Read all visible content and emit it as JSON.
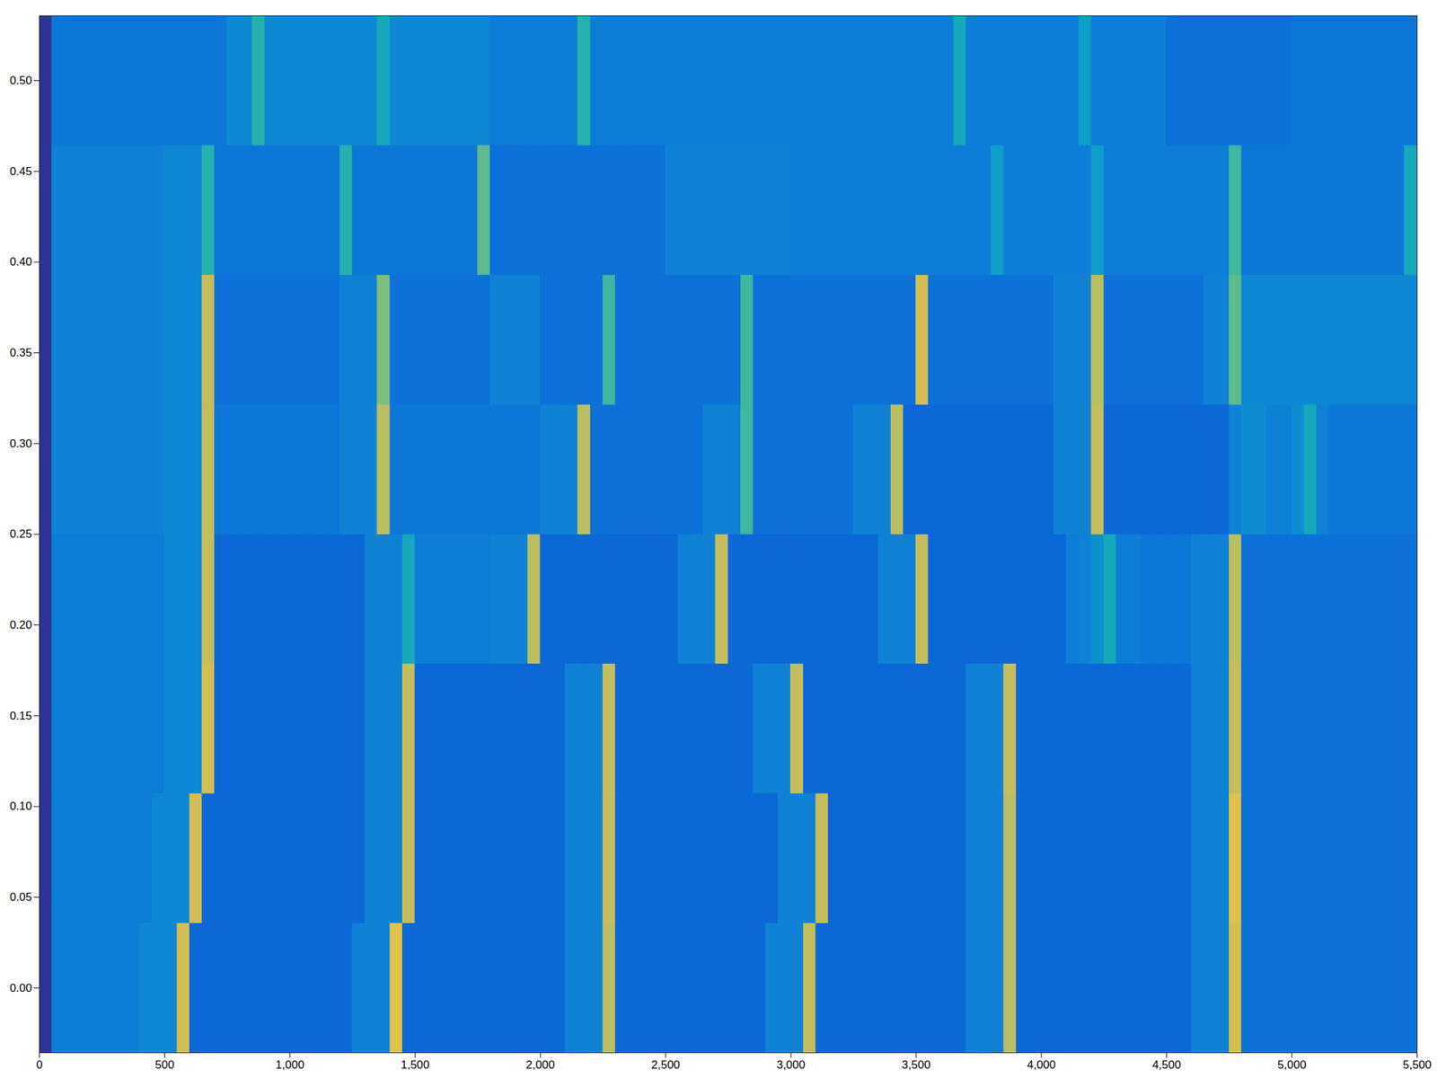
{
  "chart_data": {
    "type": "heatmap",
    "xlim": [
      0,
      5500
    ],
    "ylim": [
      -0.0357,
      0.5357
    ],
    "xticks": [
      0,
      500,
      1000,
      1500,
      2000,
      2500,
      3000,
      3500,
      4000,
      4500,
      5000,
      5500
    ],
    "yticks": [
      0,
      0.05,
      0.1,
      0.15,
      0.2,
      0.25,
      0.3,
      0.35,
      0.4,
      0.45,
      0.5
    ],
    "color_range": [
      0,
      1
    ],
    "x_edges": [
      0,
      50,
      100,
      150,
      200,
      250,
      300,
      350,
      400,
      450,
      500,
      550,
      600,
      650,
      700,
      750,
      800,
      850,
      900,
      950,
      1000,
      1050,
      1100,
      1150,
      1200,
      1250,
      1300,
      1350,
      1400,
      1450,
      1500,
      1550,
      1600,
      1650,
      1700,
      1750,
      1800,
      1850,
      1900,
      1950,
      2000,
      2050,
      2100,
      2150,
      2200,
      2250,
      2300,
      2350,
      2400,
      2450,
      2500,
      2550,
      2600,
      2650,
      2700,
      2750,
      2800,
      2850,
      2900,
      2950,
      3000,
      3050,
      3100,
      3150,
      3200,
      3250,
      3300,
      3350,
      3400,
      3450,
      3500,
      3550,
      3600,
      3650,
      3700,
      3750,
      3800,
      3850,
      3900,
      3950,
      4000,
      4050,
      4100,
      4150,
      4200,
      4250,
      4300,
      4350,
      4400,
      4450,
      4500,
      4550,
      4600,
      4650,
      4700,
      4750,
      4800,
      4850,
      4900,
      4950,
      5000,
      5050,
      5100,
      5150,
      5200,
      5250,
      5300,
      5350,
      5400,
      5450,
      5500
    ],
    "y_edges": [
      -0.0357,
      0.0357,
      0.1071,
      0.1786,
      0.25,
      0.3214,
      0.3929,
      0.4643,
      0.5357
    ],
    "values": [
      [
        0.02,
        0.22,
        0.22,
        0.22,
        0.22,
        0.22,
        0.22,
        0.22,
        0.26,
        0.26,
        0.26,
        0.75,
        0.15,
        0.15,
        0.15,
        0.15,
        0.15,
        0.15,
        0.15,
        0.15,
        0.15,
        0.15,
        0.15,
        0.15,
        0.15,
        0.24,
        0.24,
        0.24,
        0.78,
        0.15,
        0.15,
        0.15,
        0.15,
        0.15,
        0.15,
        0.15,
        0.15,
        0.15,
        0.15,
        0.15,
        0.15,
        0.15,
        0.24,
        0.24,
        0.24,
        0.7,
        0.15,
        0.15,
        0.15,
        0.15,
        0.15,
        0.15,
        0.15,
        0.15,
        0.15,
        0.15,
        0.15,
        0.15,
        0.24,
        0.24,
        0.24,
        0.72,
        0.15,
        0.15,
        0.15,
        0.15,
        0.15,
        0.15,
        0.15,
        0.15,
        0.15,
        0.15,
        0.15,
        0.15,
        0.24,
        0.24,
        0.24,
        0.7,
        0.15,
        0.15,
        0.15,
        0.15,
        0.15,
        0.15,
        0.15,
        0.15,
        0.15,
        0.15,
        0.15,
        0.15,
        0.15,
        0.15,
        0.24,
        0.24,
        0.24,
        0.75,
        0.18,
        0.18,
        0.18,
        0.18,
        0.18,
        0.18,
        0.18,
        0.18,
        0.18,
        0.18,
        0.18,
        0.18,
        0.18,
        0.18
      ],
      [
        0.02,
        0.22,
        0.22,
        0.22,
        0.22,
        0.22,
        0.22,
        0.22,
        0.22,
        0.26,
        0.26,
        0.26,
        0.75,
        0.15,
        0.15,
        0.15,
        0.15,
        0.15,
        0.15,
        0.15,
        0.15,
        0.15,
        0.15,
        0.15,
        0.15,
        0.15,
        0.24,
        0.24,
        0.24,
        0.72,
        0.15,
        0.15,
        0.15,
        0.15,
        0.15,
        0.15,
        0.15,
        0.15,
        0.15,
        0.15,
        0.15,
        0.15,
        0.24,
        0.24,
        0.24,
        0.72,
        0.15,
        0.15,
        0.15,
        0.15,
        0.15,
        0.15,
        0.15,
        0.15,
        0.15,
        0.15,
        0.15,
        0.15,
        0.15,
        0.24,
        0.24,
        0.24,
        0.72,
        0.15,
        0.15,
        0.15,
        0.15,
        0.15,
        0.15,
        0.15,
        0.15,
        0.15,
        0.15,
        0.15,
        0.24,
        0.24,
        0.24,
        0.7,
        0.15,
        0.15,
        0.15,
        0.15,
        0.15,
        0.15,
        0.15,
        0.15,
        0.15,
        0.15,
        0.15,
        0.15,
        0.15,
        0.15,
        0.24,
        0.24,
        0.24,
        0.78,
        0.18,
        0.18,
        0.18,
        0.18,
        0.18,
        0.18,
        0.18,
        0.18,
        0.18,
        0.18,
        0.18,
        0.18,
        0.18,
        0.18
      ],
      [
        0.02,
        0.22,
        0.22,
        0.22,
        0.22,
        0.22,
        0.22,
        0.22,
        0.22,
        0.22,
        0.26,
        0.26,
        0.26,
        0.75,
        0.15,
        0.15,
        0.15,
        0.15,
        0.15,
        0.15,
        0.15,
        0.15,
        0.15,
        0.15,
        0.15,
        0.15,
        0.24,
        0.24,
        0.24,
        0.72,
        0.15,
        0.15,
        0.15,
        0.15,
        0.15,
        0.15,
        0.15,
        0.15,
        0.15,
        0.15,
        0.15,
        0.15,
        0.24,
        0.24,
        0.24,
        0.72,
        0.15,
        0.15,
        0.15,
        0.15,
        0.15,
        0.15,
        0.15,
        0.15,
        0.15,
        0.15,
        0.15,
        0.24,
        0.24,
        0.24,
        0.72,
        0.15,
        0.15,
        0.15,
        0.15,
        0.15,
        0.15,
        0.15,
        0.15,
        0.15,
        0.15,
        0.15,
        0.15,
        0.15,
        0.24,
        0.24,
        0.24,
        0.72,
        0.15,
        0.15,
        0.15,
        0.15,
        0.15,
        0.15,
        0.15,
        0.15,
        0.15,
        0.15,
        0.15,
        0.15,
        0.15,
        0.15,
        0.24,
        0.24,
        0.24,
        0.72,
        0.18,
        0.18,
        0.18,
        0.18,
        0.18,
        0.18,
        0.18,
        0.18,
        0.18,
        0.18,
        0.18,
        0.18,
        0.18,
        0.18
      ],
      [
        0.02,
        0.22,
        0.22,
        0.22,
        0.22,
        0.22,
        0.22,
        0.22,
        0.22,
        0.22,
        0.26,
        0.26,
        0.26,
        0.72,
        0.15,
        0.15,
        0.15,
        0.15,
        0.15,
        0.15,
        0.15,
        0.15,
        0.15,
        0.15,
        0.15,
        0.15,
        0.24,
        0.24,
        0.24,
        0.4,
        0.22,
        0.22,
        0.22,
        0.22,
        0.22,
        0.22,
        0.24,
        0.24,
        0.24,
        0.7,
        0.15,
        0.15,
        0.15,
        0.15,
        0.15,
        0.15,
        0.15,
        0.15,
        0.15,
        0.15,
        0.15,
        0.24,
        0.24,
        0.24,
        0.72,
        0.15,
        0.15,
        0.15,
        0.15,
        0.15,
        0.15,
        0.15,
        0.15,
        0.15,
        0.15,
        0.15,
        0.15,
        0.24,
        0.24,
        0.24,
        0.72,
        0.15,
        0.15,
        0.15,
        0.15,
        0.15,
        0.15,
        0.15,
        0.15,
        0.15,
        0.15,
        0.15,
        0.22,
        0.24,
        0.3,
        0.4,
        0.22,
        0.22,
        0.2,
        0.2,
        0.2,
        0.2,
        0.24,
        0.24,
        0.24,
        0.7,
        0.18,
        0.18,
        0.18,
        0.18,
        0.18,
        0.18,
        0.18,
        0.18,
        0.18,
        0.18,
        0.18,
        0.18,
        0.18,
        0.18
      ],
      [
        0.02,
        0.24,
        0.24,
        0.24,
        0.24,
        0.24,
        0.24,
        0.24,
        0.24,
        0.24,
        0.26,
        0.26,
        0.26,
        0.72,
        0.2,
        0.2,
        0.2,
        0.2,
        0.2,
        0.2,
        0.2,
        0.2,
        0.2,
        0.2,
        0.24,
        0.24,
        0.24,
        0.7,
        0.2,
        0.2,
        0.2,
        0.2,
        0.2,
        0.2,
        0.2,
        0.2,
        0.2,
        0.2,
        0.2,
        0.2,
        0.24,
        0.24,
        0.24,
        0.7,
        0.18,
        0.18,
        0.18,
        0.18,
        0.18,
        0.18,
        0.18,
        0.18,
        0.18,
        0.24,
        0.24,
        0.24,
        0.5,
        0.18,
        0.18,
        0.18,
        0.18,
        0.18,
        0.18,
        0.18,
        0.18,
        0.24,
        0.24,
        0.24,
        0.7,
        0.15,
        0.15,
        0.15,
        0.15,
        0.15,
        0.15,
        0.15,
        0.15,
        0.15,
        0.15,
        0.15,
        0.15,
        0.24,
        0.24,
        0.24,
        0.72,
        0.15,
        0.15,
        0.15,
        0.15,
        0.15,
        0.15,
        0.15,
        0.15,
        0.15,
        0.15,
        0.24,
        0.28,
        0.28,
        0.24,
        0.24,
        0.28,
        0.4,
        0.24,
        0.2,
        0.2,
        0.2,
        0.2,
        0.2,
        0.2,
        0.2
      ],
      [
        0.02,
        0.24,
        0.24,
        0.24,
        0.24,
        0.24,
        0.24,
        0.24,
        0.24,
        0.24,
        0.26,
        0.26,
        0.26,
        0.72,
        0.18,
        0.18,
        0.18,
        0.18,
        0.18,
        0.18,
        0.18,
        0.18,
        0.18,
        0.18,
        0.24,
        0.24,
        0.24,
        0.6,
        0.18,
        0.18,
        0.18,
        0.18,
        0.18,
        0.18,
        0.18,
        0.18,
        0.24,
        0.24,
        0.24,
        0.24,
        0.18,
        0.18,
        0.18,
        0.18,
        0.18,
        0.5,
        0.18,
        0.18,
        0.18,
        0.18,
        0.18,
        0.18,
        0.18,
        0.18,
        0.18,
        0.18,
        0.5,
        0.18,
        0.18,
        0.18,
        0.18,
        0.18,
        0.18,
        0.18,
        0.18,
        0.18,
        0.18,
        0.18,
        0.18,
        0.18,
        0.75,
        0.18,
        0.18,
        0.18,
        0.18,
        0.18,
        0.18,
        0.18,
        0.18,
        0.18,
        0.18,
        0.24,
        0.24,
        0.24,
        0.7,
        0.18,
        0.18,
        0.18,
        0.18,
        0.18,
        0.18,
        0.18,
        0.18,
        0.24,
        0.24,
        0.55,
        0.26,
        0.26,
        0.26,
        0.26,
        0.26,
        0.26,
        0.26,
        0.26,
        0.26,
        0.26,
        0.26,
        0.26,
        0.26,
        0.26
      ],
      [
        0.02,
        0.24,
        0.24,
        0.24,
        0.24,
        0.24,
        0.24,
        0.24,
        0.24,
        0.24,
        0.26,
        0.26,
        0.26,
        0.45,
        0.2,
        0.2,
        0.2,
        0.2,
        0.2,
        0.2,
        0.2,
        0.2,
        0.2,
        0.2,
        0.45,
        0.2,
        0.2,
        0.2,
        0.2,
        0.2,
        0.2,
        0.2,
        0.2,
        0.2,
        0.2,
        0.55,
        0.18,
        0.18,
        0.18,
        0.18,
        0.18,
        0.18,
        0.18,
        0.18,
        0.18,
        0.18,
        0.18,
        0.18,
        0.18,
        0.18,
        0.24,
        0.24,
        0.24,
        0.24,
        0.24,
        0.24,
        0.24,
        0.24,
        0.24,
        0.24,
        0.22,
        0.22,
        0.22,
        0.22,
        0.22,
        0.22,
        0.22,
        0.22,
        0.22,
        0.22,
        0.22,
        0.22,
        0.22,
        0.22,
        0.22,
        0.22,
        0.35,
        0.22,
        0.22,
        0.22,
        0.22,
        0.22,
        0.22,
        0.22,
        0.35,
        0.22,
        0.22,
        0.22,
        0.22,
        0.22,
        0.22,
        0.22,
        0.22,
        0.22,
        0.22,
        0.5,
        0.2,
        0.2,
        0.2,
        0.2,
        0.2,
        0.2,
        0.2,
        0.2,
        0.2,
        0.2,
        0.2,
        0.2,
        0.2,
        0.4
      ],
      [
        0.02,
        0.2,
        0.2,
        0.2,
        0.2,
        0.2,
        0.2,
        0.2,
        0.2,
        0.2,
        0.2,
        0.2,
        0.2,
        0.2,
        0.2,
        0.26,
        0.26,
        0.45,
        0.26,
        0.26,
        0.26,
        0.26,
        0.26,
        0.26,
        0.26,
        0.26,
        0.26,
        0.4,
        0.26,
        0.26,
        0.26,
        0.26,
        0.26,
        0.26,
        0.26,
        0.26,
        0.22,
        0.22,
        0.22,
        0.22,
        0.22,
        0.22,
        0.22,
        0.45,
        0.22,
        0.22,
        0.22,
        0.22,
        0.22,
        0.22,
        0.22,
        0.22,
        0.22,
        0.22,
        0.22,
        0.22,
        0.22,
        0.22,
        0.22,
        0.22,
        0.22,
        0.22,
        0.22,
        0.22,
        0.22,
        0.22,
        0.22,
        0.22,
        0.22,
        0.22,
        0.22,
        0.22,
        0.22,
        0.4,
        0.22,
        0.22,
        0.22,
        0.22,
        0.22,
        0.22,
        0.22,
        0.22,
        0.22,
        0.35,
        0.22,
        0.22,
        0.22,
        0.22,
        0.22,
        0.22,
        0.18,
        0.18,
        0.18,
        0.18,
        0.18,
        0.18,
        0.18,
        0.18,
        0.18,
        0.18,
        0.2,
        0.2,
        0.2,
        0.2,
        0.2,
        0.2,
        0.2,
        0.2,
        0.2,
        0.2
      ]
    ]
  }
}
